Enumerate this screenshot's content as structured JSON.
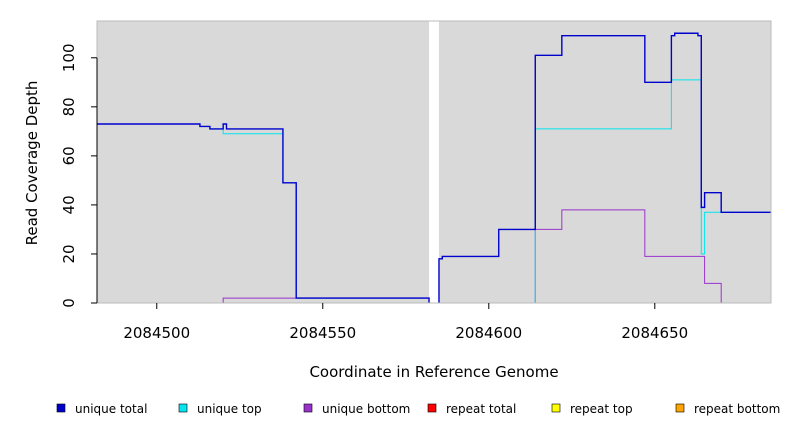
{
  "chart_data": {
    "type": "line",
    "step": true,
    "xlabel": "Coordinate in Reference Genome",
    "ylabel": "Read Coverage Depth",
    "xlim": [
      2084482,
      2084685
    ],
    "ylim": [
      0,
      115
    ],
    "x_ticks": [
      2084500,
      2084550,
      2084600,
      2084650
    ],
    "x_tick_labels": [
      "2084500",
      "2084550",
      "2084600",
      "2084650"
    ],
    "y_ticks": [
      0,
      20,
      40,
      60,
      80,
      100
    ],
    "y_tick_labels": [
      "0",
      "20",
      "40",
      "60",
      "80",
      "100"
    ],
    "background_color": "#d9d9d9",
    "gap": [
      2084582,
      2084585
    ],
    "grid": false,
    "legend_position": "bottom",
    "series": [
      {
        "name": "unique total",
        "color": "#0000cd",
        "segments": [
          [
            [
              2084482,
              73
            ],
            [
              2084513,
              73
            ],
            [
              2084513,
              72
            ],
            [
              2084516,
              72
            ],
            [
              2084516,
              71
            ],
            [
              2084520,
              71
            ],
            [
              2084520,
              73
            ],
            [
              2084521,
              73
            ],
            [
              2084521,
              71
            ],
            [
              2084538,
              71
            ],
            [
              2084538,
              49
            ],
            [
              2084542,
              49
            ],
            [
              2084542,
              2
            ],
            [
              2084582,
              2
            ],
            [
              2084582,
              0
            ]
          ],
          [
            [
              2084585,
              0
            ],
            [
              2084585,
              18
            ],
            [
              2084586,
              18
            ],
            [
              2084586,
              19
            ],
            [
              2084603,
              19
            ],
            [
              2084603,
              30
            ],
            [
              2084614,
              30
            ],
            [
              2084614,
              101
            ],
            [
              2084622,
              101
            ],
            [
              2084622,
              109
            ],
            [
              2084647,
              109
            ],
            [
              2084647,
              90
            ],
            [
              2084655,
              90
            ],
            [
              2084655,
              109
            ],
            [
              2084656,
              109
            ],
            [
              2084656,
              110
            ],
            [
              2084663,
              110
            ],
            [
              2084663,
              109
            ],
            [
              2084664,
              109
            ],
            [
              2084664,
              39
            ],
            [
              2084665,
              39
            ],
            [
              2084665,
              45
            ],
            [
              2084670,
              45
            ],
            [
              2084670,
              37
            ],
            [
              2084685,
              37
            ]
          ]
        ]
      },
      {
        "name": "unique top",
        "color": "#00e5ee",
        "segments": [
          [
            [
              2084482,
              73
            ],
            [
              2084513,
              73
            ],
            [
              2084513,
              72
            ],
            [
              2084516,
              72
            ],
            [
              2084516,
              71
            ],
            [
              2084520,
              71
            ],
            [
              2084520,
              69
            ],
            [
              2084538,
              69
            ],
            [
              2084538,
              49
            ],
            [
              2084542,
              49
            ],
            [
              2084542,
              2
            ],
            [
              2084582,
              2
            ],
            [
              2084582,
              0
            ]
          ],
          [
            [
              2084585,
              0
            ],
            [
              2084614,
              0
            ],
            [
              2084614,
              71
            ],
            [
              2084655,
              71
            ],
            [
              2084655,
              91
            ],
            [
              2084664,
              91
            ],
            [
              2084664,
              20
            ],
            [
              2084665,
              20
            ],
            [
              2084665,
              37
            ],
            [
              2084685,
              37
            ]
          ]
        ]
      },
      {
        "name": "unique bottom",
        "color": "#9932cc",
        "segments": [
          [
            [
              2084482,
              0
            ],
            [
              2084520,
              0
            ],
            [
              2084520,
              2
            ],
            [
              2084542,
              2
            ],
            [
              2084542,
              2
            ],
            [
              2084582,
              2
            ],
            [
              2084582,
              0
            ]
          ],
          [
            [
              2084585,
              0
            ],
            [
              2084614,
              0
            ],
            [
              2084614,
              30
            ],
            [
              2084622,
              30
            ],
            [
              2084622,
              38
            ],
            [
              2084647,
              38
            ],
            [
              2084647,
              19
            ],
            [
              2084665,
              19
            ],
            [
              2084665,
              8
            ],
            [
              2084670,
              8
            ],
            [
              2084670,
              0
            ],
            [
              2084685,
              0
            ]
          ]
        ]
      },
      {
        "name": "repeat total",
        "color": "#ff0000",
        "segments": [
          [
            [
              2084482,
              0
            ],
            [
              2084582,
              0
            ]
          ],
          [
            [
              2084585,
              0
            ],
            [
              2084685,
              0
            ]
          ]
        ]
      },
      {
        "name": "repeat top",
        "color": "#ffff00",
        "segments": [
          [
            [
              2084482,
              0
            ],
            [
              2084582,
              0
            ]
          ],
          [
            [
              2084585,
              0
            ],
            [
              2084685,
              0
            ]
          ]
        ]
      },
      {
        "name": "repeat bottom",
        "color": "#ffa500",
        "segments": [
          [
            [
              2084520,
              0
            ],
            [
              2084542,
              0
            ]
          ],
          [
            [
              2084614,
              0
            ],
            [
              2084670,
              0
            ]
          ]
        ]
      }
    ]
  }
}
